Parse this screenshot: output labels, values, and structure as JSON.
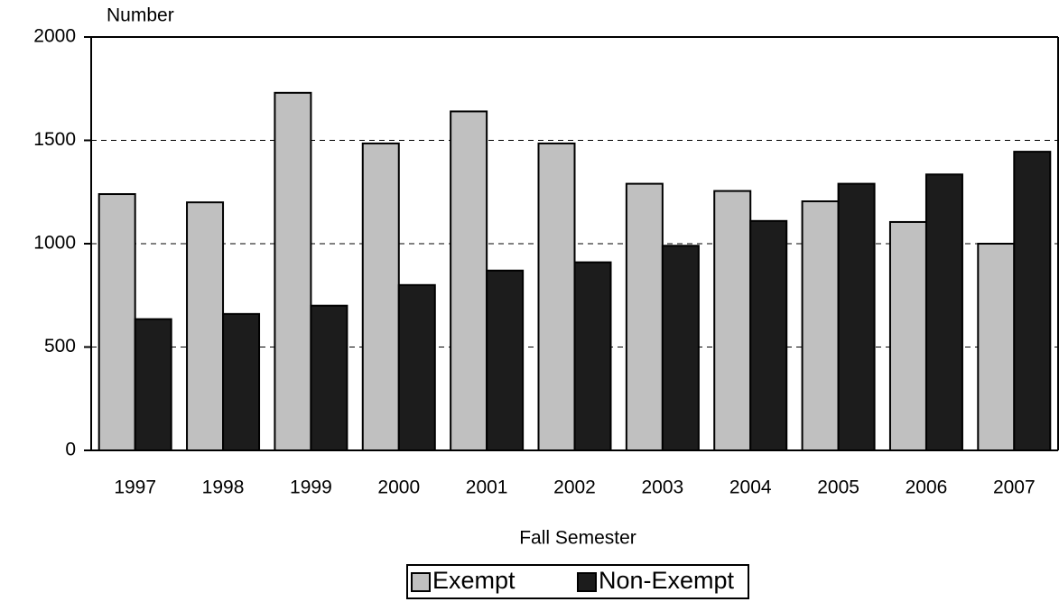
{
  "chart_data": {
    "type": "bar",
    "y_label": "Number",
    "x_label": "Fall Semester",
    "categories": [
      "1997",
      "1998",
      "1999",
      "2000",
      "2001",
      "2002",
      "2003",
      "2004",
      "2005",
      "2006",
      "2007"
    ],
    "series": [
      {
        "name": "Exempt",
        "color": "#c0c0c0",
        "values": [
          1240,
          1200,
          1730,
          1485,
          1640,
          1485,
          1290,
          1255,
          1205,
          1105,
          1000
        ]
      },
      {
        "name": "Non-Exempt",
        "color": "#1c1c1c",
        "values": [
          635,
          660,
          700,
          800,
          870,
          910,
          990,
          1110,
          1290,
          1335,
          1445
        ]
      }
    ],
    "ylim": [
      0,
      2000
    ],
    "yticks": [
      0,
      500,
      1000,
      1500,
      2000
    ],
    "grid": true,
    "legend": "bottom"
  }
}
